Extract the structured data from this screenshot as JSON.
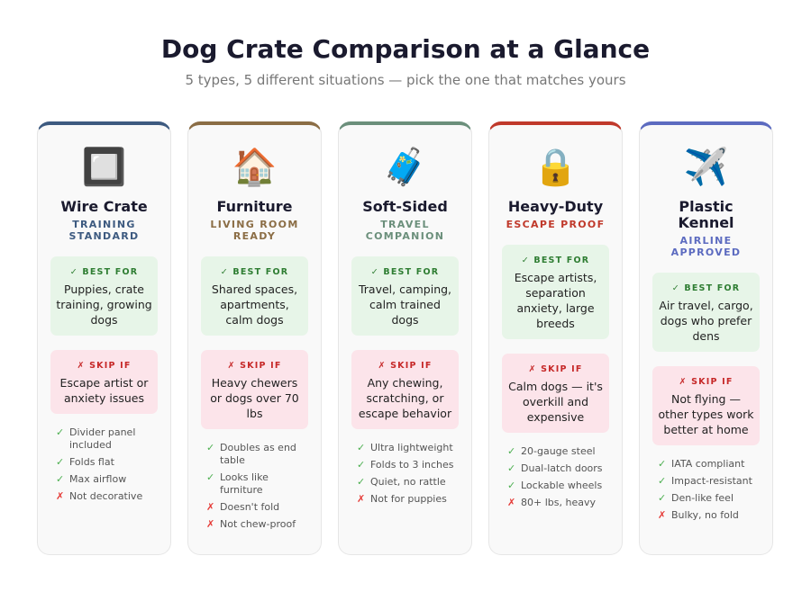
{
  "title": "Dog Crate Comparison at a Glance",
  "subtitle": "5 types, 5 different situations — pick the one that matches yours",
  "labels": {
    "best": "✓ BEST FOR",
    "skip": "✗ SKIP IF",
    "yes": "✓",
    "no": "✗"
  },
  "cards": [
    {
      "icon": "🔲",
      "name": "Wire Crate",
      "tag": "TRAINING STANDARD",
      "color": "#3d5a80",
      "best": "Puppies, crate training, growing dogs",
      "skip": "Escape artist or anxiety issues",
      "features": [
        {
          "ok": true,
          "text": "Divider panel included"
        },
        {
          "ok": true,
          "text": "Folds flat"
        },
        {
          "ok": true,
          "text": "Max airflow"
        },
        {
          "ok": false,
          "text": "Not decorative"
        }
      ]
    },
    {
      "icon": "🏠",
      "name": "Furniture",
      "tag": "LIVING ROOM READY",
      "color": "#8b6d45",
      "best": "Shared spaces, apartments, calm dogs",
      "skip": "Heavy chewers or dogs over 70 lbs",
      "features": [
        {
          "ok": true,
          "text": "Doubles as end table"
        },
        {
          "ok": true,
          "text": "Looks like furniture"
        },
        {
          "ok": false,
          "text": "Doesn't fold"
        },
        {
          "ok": false,
          "text": "Not chew-proof"
        }
      ]
    },
    {
      "icon": "🧳",
      "name": "Soft-Sided",
      "tag": "TRAVEL COMPANION",
      "color": "#6b8f7b",
      "best": "Travel, camping, calm trained dogs",
      "skip": "Any chewing, scratching, or escape behavior",
      "features": [
        {
          "ok": true,
          "text": "Ultra lightweight"
        },
        {
          "ok": true,
          "text": "Folds to 3 inches"
        },
        {
          "ok": true,
          "text": "Quiet, no rattle"
        },
        {
          "ok": false,
          "text": "Not for puppies"
        }
      ]
    },
    {
      "icon": "🔒",
      "name": "Heavy-Duty",
      "tag": "ESCAPE PROOF",
      "color": "#c0392b",
      "best": "Escape artists, separation anxiety, large breeds",
      "skip": "Calm dogs — it's overkill and expensive",
      "features": [
        {
          "ok": true,
          "text": "20-gauge steel"
        },
        {
          "ok": true,
          "text": "Dual-latch doors"
        },
        {
          "ok": true,
          "text": "Lockable wheels"
        },
        {
          "ok": false,
          "text": "80+ lbs, heavy"
        }
      ]
    },
    {
      "icon": "✈️",
      "name": "Plastic Kennel",
      "tag": "AIRLINE APPROVED",
      "color": "#5c6bc0",
      "best": "Air travel, cargo, dogs who prefer dens",
      "skip": "Not flying — other types work better at home",
      "features": [
        {
          "ok": true,
          "text": "IATA compliant"
        },
        {
          "ok": true,
          "text": "Impact-resistant"
        },
        {
          "ok": true,
          "text": "Den-like feel"
        },
        {
          "ok": false,
          "text": "Bulky, no fold"
        }
      ]
    }
  ]
}
